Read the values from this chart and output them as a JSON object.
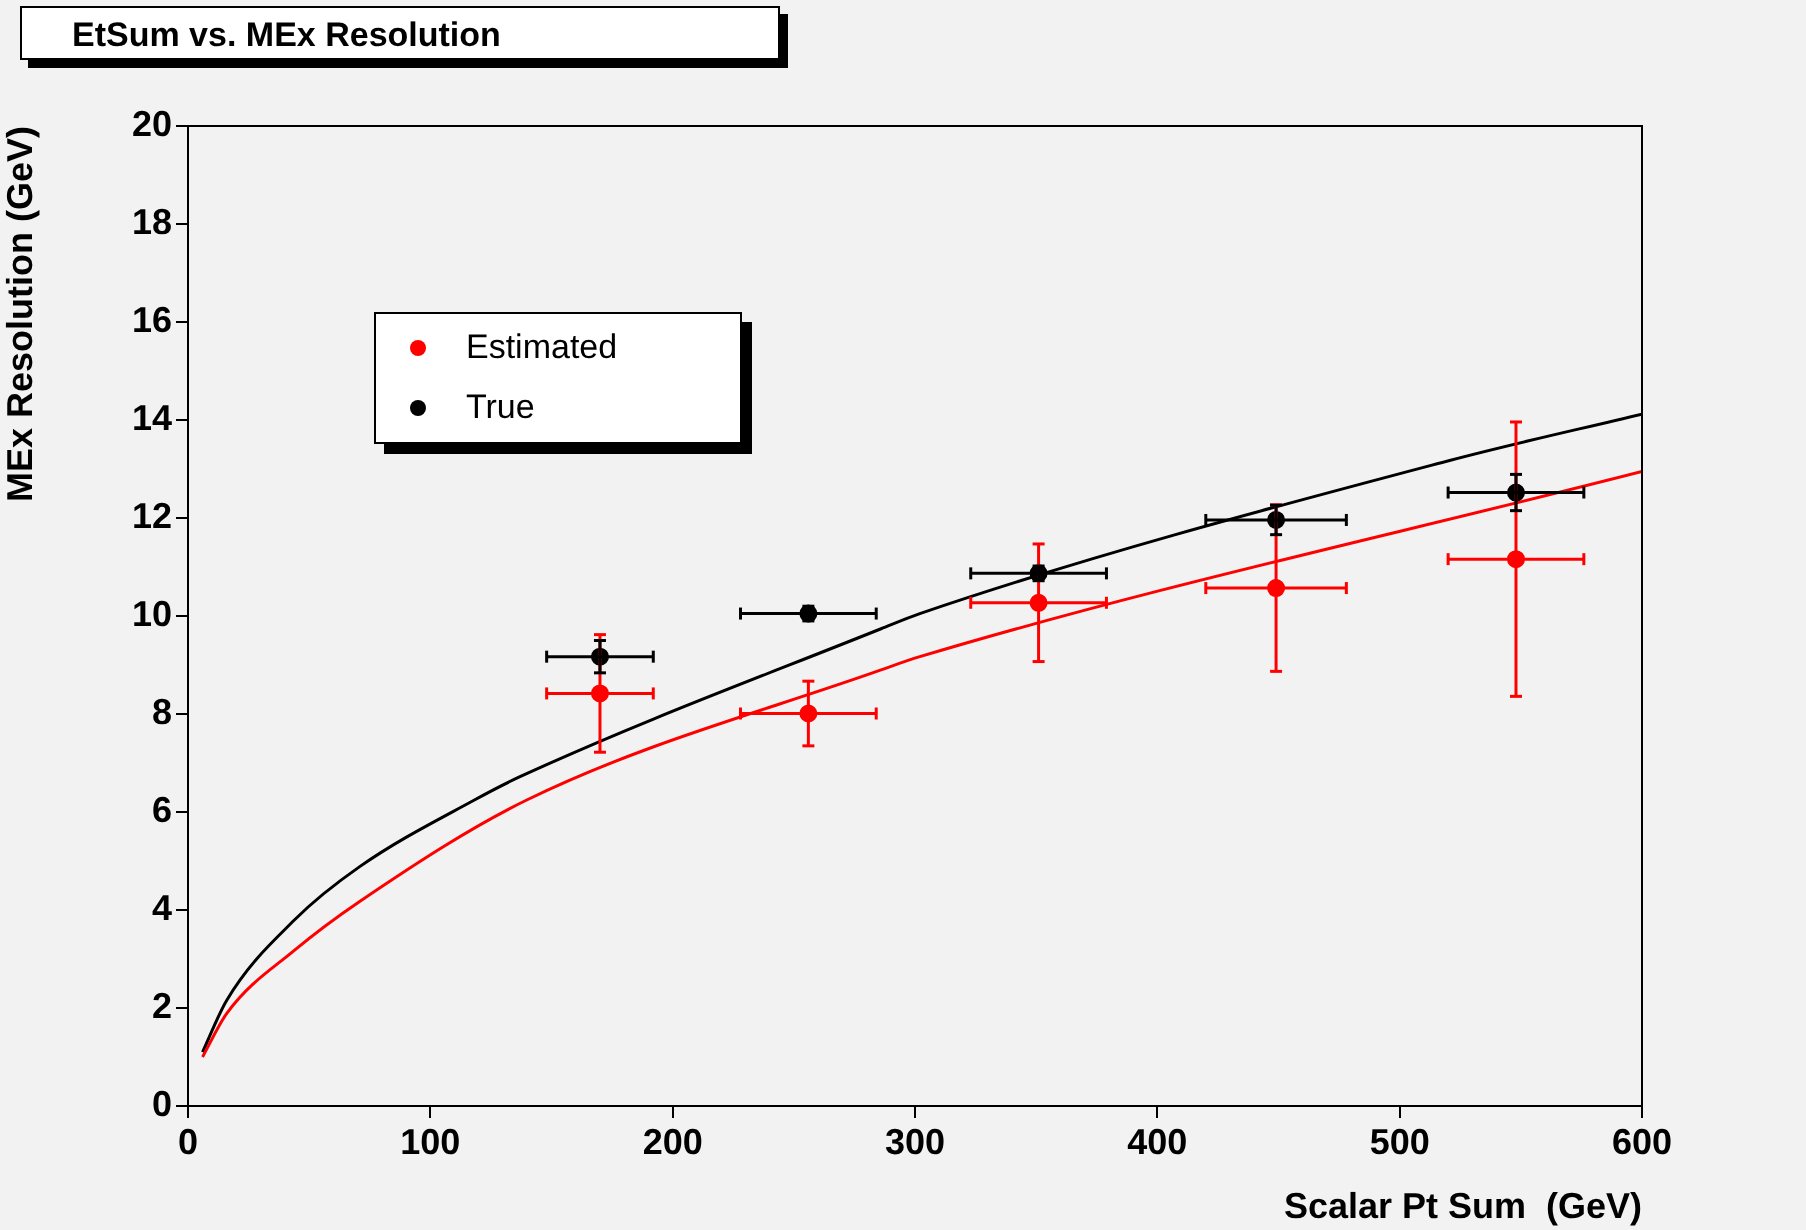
{
  "chart_data": {
    "type": "scatter",
    "title": "EtSum vs. MEx Resolution",
    "xlabel": "Scalar Pt Sum  (GeV)",
    "ylabel": "MEx Resolution (GeV)",
    "xlim": [
      0,
      600
    ],
    "xticks": [
      0,
      100,
      200,
      300,
      400,
      500,
      600
    ],
    "ylim": [
      0,
      20
    ],
    "yticks": [
      0,
      2,
      4,
      6,
      8,
      10,
      12,
      14,
      16,
      18,
      20
    ],
    "grid": false,
    "legend": "top left",
    "marker": "circle",
    "series": [
      {
        "name": "Estimated",
        "color": "#ff0000",
        "x": [
          170,
          256,
          351,
          449,
          548
        ],
        "values": [
          8.42,
          8.01,
          10.27,
          10.57,
          11.16
        ],
        "errors": [
          1.2,
          0.66,
          1.2,
          1.7,
          2.8
        ],
        "xerrors": [
          22,
          28,
          28,
          29,
          28
        ]
      },
      {
        "name": "True",
        "color": "#000000",
        "x": [
          170,
          256,
          351,
          449,
          548
        ],
        "values": [
          9.17,
          10.05,
          10.87,
          11.96,
          12.52
        ],
        "errors": [
          0.33,
          0.15,
          0.15,
          0.3,
          0.37
        ],
        "xerrors": [
          22,
          28,
          28,
          29,
          28
        ]
      },
      {
        "type": "line",
        "color": "#ff0000",
        "marker": "none",
        "line_style": "solid",
        "x": [
          6,
          16,
          44,
          71,
          140,
          286,
          302,
          600
        ],
        "values": [
          1.0,
          1.89,
          3.18,
          4.18,
          6.25,
          8.9,
          9.17,
          12.95
        ]
      },
      {
        "type": "line",
        "color": "#000000",
        "marker": "none",
        "line_style": "solid",
        "x": [
          6,
          16,
          44,
          71,
          118,
          137,
          286,
          302,
          521,
          600
        ],
        "values": [
          1.1,
          2.16,
          3.8,
          4.89,
          6.24,
          6.72,
          9.74,
          10.05,
          13.18,
          14.12
        ]
      }
    ]
  }
}
